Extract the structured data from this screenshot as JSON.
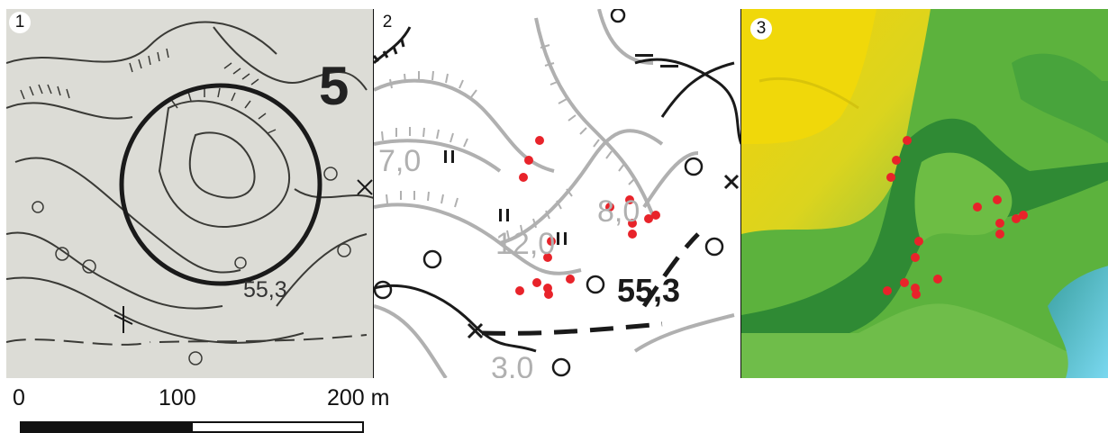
{
  "panels": [
    {
      "label": "1",
      "elevation_label": "55,3",
      "map_number": "5"
    },
    {
      "label": "2",
      "elevation_label": "55,3",
      "contour_labels": [
        "7,0",
        "12,0",
        "8,0",
        "3,0"
      ]
    },
    {
      "label": "3"
    }
  ],
  "scale_bar": {
    "tick_labels": [
      "0",
      "100",
      "200 m"
    ]
  },
  "colors": {
    "points": "#e8232a",
    "relief_high": "#f2d20a",
    "relief_mid": "#4fa83a",
    "relief_low": "#1f7d3a",
    "water": "#5cc6e8"
  }
}
